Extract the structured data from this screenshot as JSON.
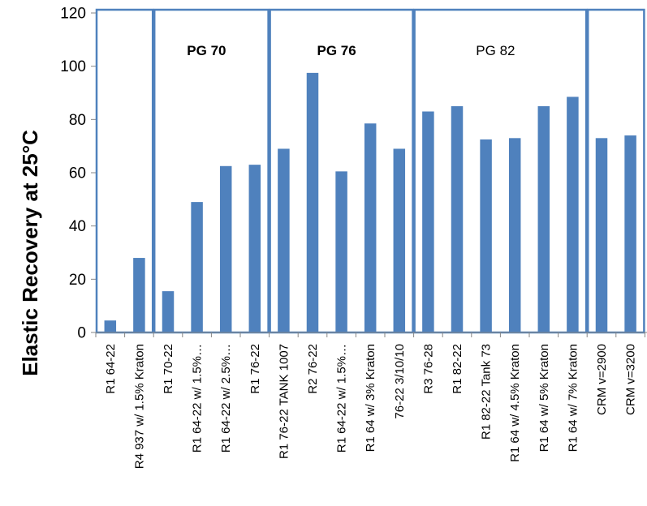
{
  "chart_data": {
    "type": "bar",
    "title": "",
    "xlabel": "",
    "ylabel": "Elastic Recovery at 25°C",
    "ylim": [
      0,
      120
    ],
    "yticks": [
      0,
      20,
      40,
      60,
      80,
      100,
      120
    ],
    "grid": false,
    "bar_color": "#4F81BD",
    "box_color": "#4F81BD",
    "categories": [
      "R1 64-22",
      "R4 937 w/ 1.5% Kraton",
      "R1 70-22",
      "R1 64-22 w/ 1.5%…",
      "R1 64-22 w/ 2.5%…",
      "R1 76-22",
      "R1 76-22 TANK 1007",
      "R2 76-22",
      "R1 64-22 w/ 1.5%…",
      "R1 64 w/ 3% Kraton",
      "76-22 3/10/10",
      "R3 76-28",
      "R1 82-22",
      "R1 82-22 Tank 73",
      "R1 64 w/ 4.5% Kraton",
      "R1 64 w/ 5% Kraton",
      "R1 64 w/ 7% Kraton",
      "CRM v=2900",
      "CRM v=3200"
    ],
    "values": [
      4.5,
      28,
      15.5,
      49,
      62.5,
      63,
      69,
      97.5,
      60.5,
      78.5,
      69,
      83,
      85,
      72.5,
      73,
      85,
      88.5,
      73,
      74
    ],
    "groups": [
      {
        "label": "",
        "start": 0,
        "end": 1
      },
      {
        "label": "PG 70",
        "start": 2,
        "end": 5,
        "bold": true
      },
      {
        "label": "PG 76",
        "start": 6,
        "end": 10,
        "bold": true
      },
      {
        "label": "PG 82",
        "start": 11,
        "end": 16,
        "bold": false
      },
      {
        "label": "",
        "start": 17,
        "end": 18
      }
    ]
  }
}
